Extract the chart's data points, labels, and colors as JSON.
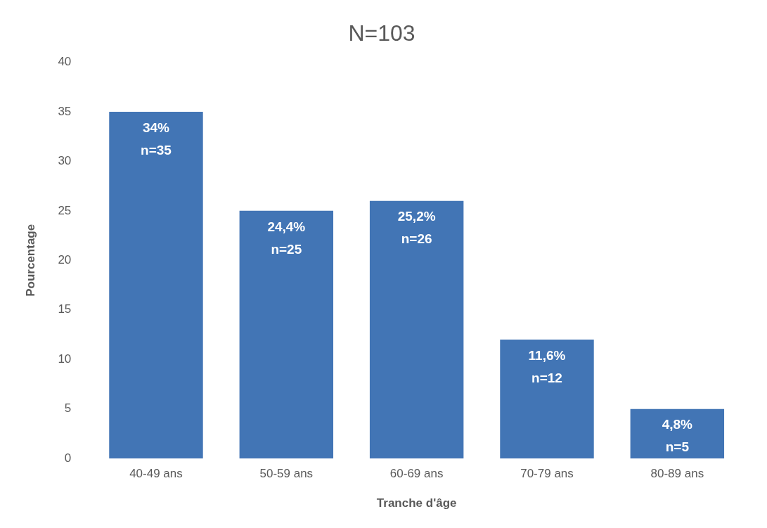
{
  "chart_data": {
    "type": "bar",
    "title": "N=103",
    "xlabel": "Tranche d'âge",
    "ylabel": "Pourcentage",
    "categories": [
      "40-49 ans",
      "50-59 ans",
      "60-69 ans",
      "70-79 ans",
      "80-89 ans"
    ],
    "values": [
      35,
      25,
      26,
      12,
      5
    ],
    "value_labels": [
      "34%\nn=35",
      "24,4%\nn=25",
      "25,2%\nn=26",
      "11,6%\nn=12",
      "4,8%\nn=5"
    ],
    "color": "#4275b5",
    "ylim": [
      0,
      40
    ],
    "yticks": [
      0,
      5,
      10,
      15,
      20,
      25,
      30,
      35,
      40
    ],
    "grid": false,
    "legend": false
  }
}
